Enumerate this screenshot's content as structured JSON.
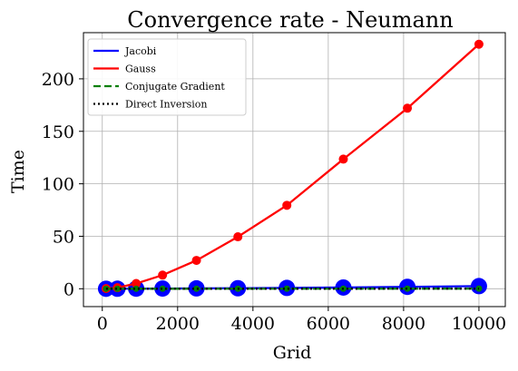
{
  "chart_data": {
    "type": "line",
    "title": "Convergence rate - Neumann",
    "xlabel": "Grid",
    "ylabel": "Time",
    "xlim": [
      -500,
      10700
    ],
    "ylim": [
      -17,
      244
    ],
    "xticks": [
      0,
      2000,
      4000,
      6000,
      8000,
      10000
    ],
    "yticks": [
      0,
      50,
      100,
      150,
      200
    ],
    "grid": true,
    "legend_position": "top-left",
    "x": [
      100,
      400,
      900,
      1600,
      2500,
      3600,
      4900,
      6400,
      8100,
      10000
    ],
    "series": [
      {
        "name": "Jacobi",
        "color": "#0000ff",
        "style": "solid",
        "marker": "large-circle",
        "values": [
          0.01,
          0.05,
          0.1,
          0.2,
          0.35,
          0.5,
          0.8,
          1.2,
          1.8,
          2.5
        ]
      },
      {
        "name": "Gauss",
        "color": "#ff0000",
        "style": "solid",
        "marker": "circle",
        "values": [
          0.2,
          1.0,
          5.0,
          13.0,
          27.0,
          49.5,
          79.5,
          123.5,
          172.0,
          233.0
        ]
      },
      {
        "name": "Conjugate Gradient",
        "color": "#008000",
        "style": "dashed",
        "marker": "small-circle",
        "values": [
          0.0,
          0.0,
          0.01,
          0.02,
          0.03,
          0.05,
          0.07,
          0.09,
          0.12,
          0.15
        ]
      },
      {
        "name": "Direct Inversion",
        "color": "#000000",
        "style": "dotted",
        "marker": "none",
        "values": [
          0.0,
          0.0,
          0.0,
          0.01,
          0.01,
          0.02,
          0.02,
          0.03,
          0.04,
          0.05
        ]
      }
    ]
  }
}
